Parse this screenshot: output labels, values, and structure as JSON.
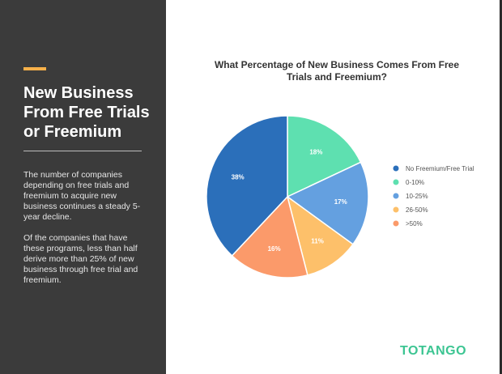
{
  "sidebar": {
    "title": "New Business From Free Trials or Freemium",
    "paragraph1": "The number of companies depending on free trials and freemium to acquire new business continues a steady 5-year decline.",
    "paragraph2": "Of the companies that have these programs, less than half derive more than 25% of new business through free trial and freemium.",
    "accent_color": "#f7b04a",
    "background_color": "#3b3b3b"
  },
  "brand": {
    "logo_text": "TOTANGO",
    "color": "#3cc592"
  },
  "chart_data": {
    "type": "pie",
    "title": "What Percentage of New Business Comes From Free Trials and Freemium?",
    "legend_position": "right",
    "categories": [
      "No Freemium/Free Trial",
      "0-10%",
      "10-25%",
      "26-50%",
      ">50%"
    ],
    "values": [
      38,
      18,
      17,
      11,
      16
    ],
    "labels": [
      "38%",
      "18%",
      "17%",
      "11%",
      "16%"
    ],
    "colors": [
      "#2b6fba",
      "#5ee0b0",
      "#64a0e0",
      "#fdc06a",
      "#fb9a6a"
    ],
    "start_category": "0-10%",
    "direction": "clockwise from top"
  }
}
